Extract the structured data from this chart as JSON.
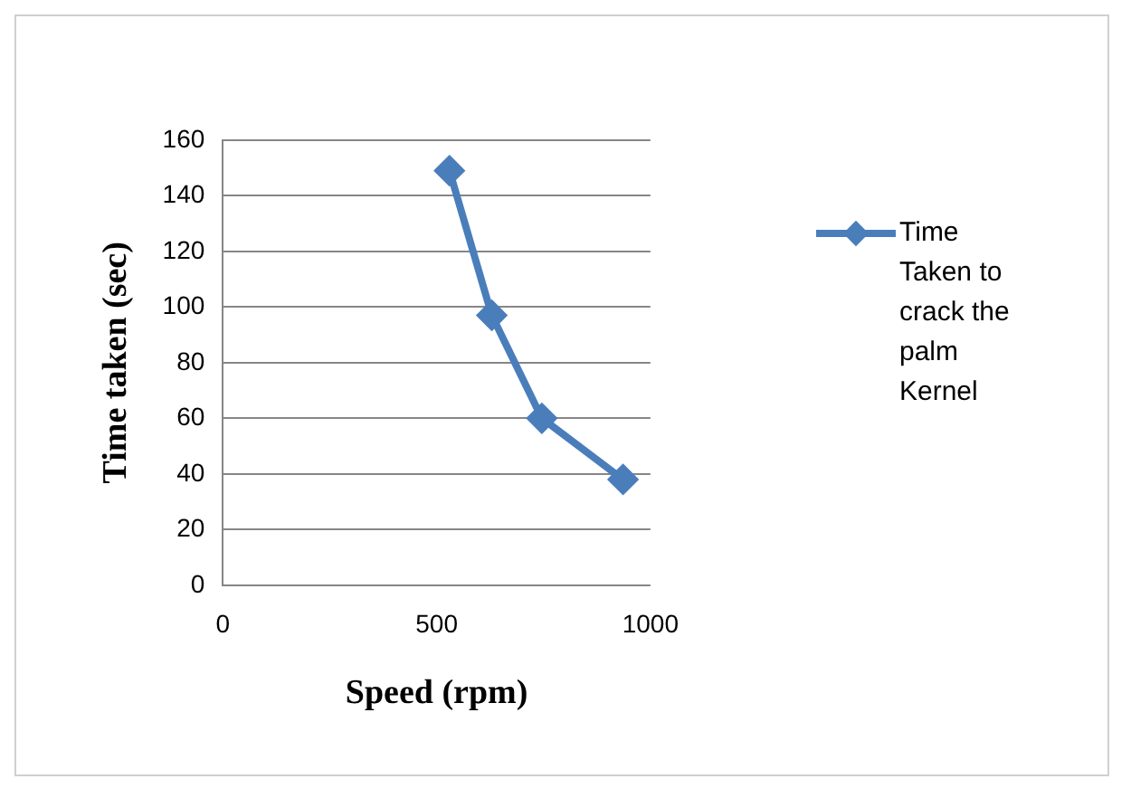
{
  "chart_data": {
    "type": "line",
    "xlabel": "Speed (rpm)",
    "ylabel": "Time taken (sec)",
    "x": [
      530,
      629,
      746,
      936
    ],
    "series": [
      {
        "name": "Time Taken to crack the palm Kernel",
        "color": "#4a7ebb",
        "values": [
          149,
          97,
          60,
          38
        ]
      }
    ],
    "xlim": [
      0,
      1000
    ],
    "xticks": [
      0,
      500,
      1000
    ],
    "ylim": [
      0,
      160
    ],
    "yticks": [
      0,
      20,
      40,
      60,
      80,
      100,
      120,
      140,
      160
    ],
    "grid": "y",
    "legend": "right",
    "marker": "diamond",
    "line_style": "solid"
  }
}
